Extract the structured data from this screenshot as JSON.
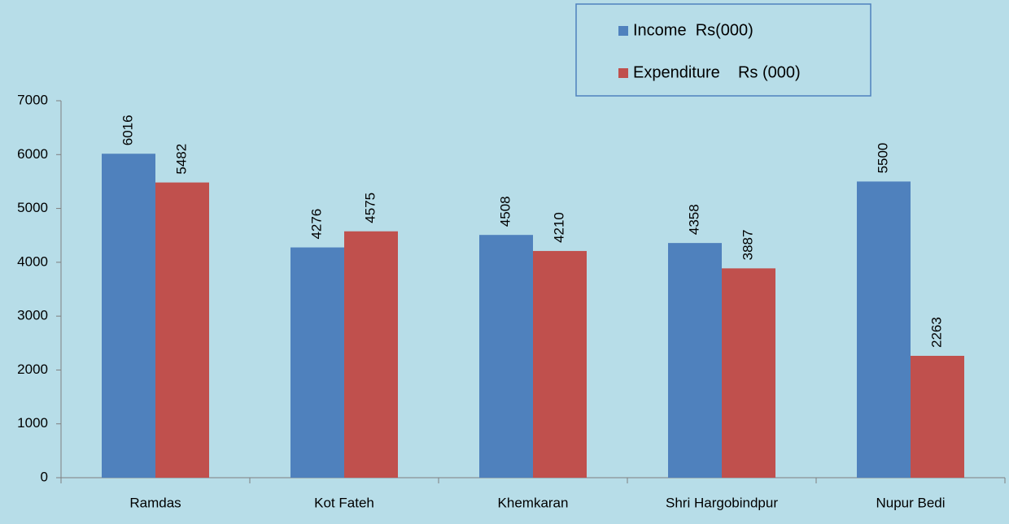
{
  "chart_data": {
    "type": "bar",
    "categories": [
      "Ramdas",
      "Kot Fateh",
      "Khemkaran",
      "Shri Hargobindpur",
      "Nupur Bedi"
    ],
    "series": [
      {
        "name": "Income  Rs(000)",
        "color": "#4f81bd",
        "values": [
          6016,
          4276,
          4508,
          4358,
          5500
        ]
      },
      {
        "name": "Expenditure    Rs (000)",
        "color": "#c0504d",
        "values": [
          5482,
          4575,
          4210,
          3887,
          2263
        ]
      }
    ],
    "ylim": [
      0,
      7000
    ],
    "yticks": [
      0,
      1000,
      2000,
      3000,
      4000,
      5000,
      6000,
      7000
    ],
    "grid": false,
    "legend": "top-right"
  }
}
